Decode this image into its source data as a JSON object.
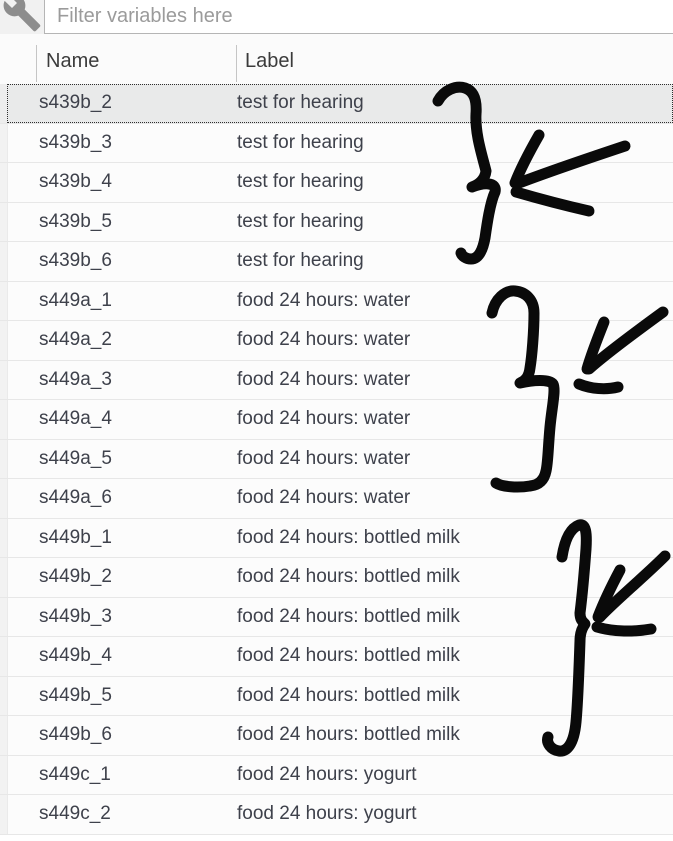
{
  "filter": {
    "placeholder": "Filter variables here",
    "icon": "wrench-icon"
  },
  "columns": {
    "name": "Name",
    "label": "Label"
  },
  "variables": [
    {
      "name": "s439b_2",
      "label": "test for hearing",
      "selected": true
    },
    {
      "name": "s439b_3",
      "label": "test for hearing",
      "selected": false
    },
    {
      "name": "s439b_4",
      "label": "test for hearing",
      "selected": false
    },
    {
      "name": "s439b_5",
      "label": "test for hearing",
      "selected": false
    },
    {
      "name": "s439b_6",
      "label": "test for hearing",
      "selected": false
    },
    {
      "name": "s449a_1",
      "label": "food 24 hours: water",
      "selected": false
    },
    {
      "name": "s449a_2",
      "label": "food 24 hours: water",
      "selected": false
    },
    {
      "name": "s449a_3",
      "label": "food 24 hours: water",
      "selected": false
    },
    {
      "name": "s449a_4",
      "label": "food 24 hours: water",
      "selected": false
    },
    {
      "name": "s449a_5",
      "label": "food 24 hours: water",
      "selected": false
    },
    {
      "name": "s449a_6",
      "label": "food 24 hours: water",
      "selected": false
    },
    {
      "name": "s449b_1",
      "label": "food 24 hours: bottled milk",
      "selected": false
    },
    {
      "name": "s449b_2",
      "label": "food 24 hours: bottled milk",
      "selected": false
    },
    {
      "name": "s449b_3",
      "label": "food 24 hours: bottled milk",
      "selected": false
    },
    {
      "name": "s449b_4",
      "label": "food 24 hours: bottled milk",
      "selected": false
    },
    {
      "name": "s449b_5",
      "label": "food 24 hours: bottled milk",
      "selected": false
    },
    {
      "name": "s449b_6",
      "label": "food 24 hours: bottled milk",
      "selected": false
    },
    {
      "name": "s449c_1",
      "label": "food 24 hours: yogurt",
      "selected": false
    },
    {
      "name": "s449c_2",
      "label": "food 24 hours: yogurt",
      "selected": false
    }
  ],
  "annotations": {
    "ink_color": "#0a0a0a",
    "stroke_width": 11,
    "marks": [
      {
        "name": "brace-hearing-group",
        "description": "hand-drawn curly brace spanning the s439b test-for-hearing rows",
        "paths": [
          "M438 101 C444 90 456 85 465 88 C474 91 477 100 476 114 C475 134 482 155 486 171 C485 180 478 185 472 187 C488 181 497 184 495 192 C490 203 487 224 485 238 C483 249 479 259 471 259 C466 259 462 256 461 253"
        ]
      },
      {
        "name": "arrow-hearing-group",
        "description": "hand-drawn arrow pointing left at the hearing brace",
        "paths": [
          "M625 146 C592 157 548 172 519 183",
          "M539 135 C531 149 520 170 515 183",
          "M516 192 C540 199 567 206 589 211"
        ]
      },
      {
        "name": "brace-water-group",
        "description": "hand-drawn curly brace spanning the s449a water rows",
        "paths": [
          "M492 313 C495 299 505 290 515 291 C526 292 534 300 534 313 C534 331 532 356 530 368 C529 377 525 381 520 383 C533 380 549 379 553 384 C556 390 552 406 550 427 C548 449 548 463 546 471 C544 481 538 485 530 486 C518 488 502 487 496 483"
        ]
      },
      {
        "name": "arrow-water-group",
        "description": "hand-drawn arrow pointing left-down at the water brace",
        "paths": [
          "M663 312 C641 328 608 352 589 369",
          "M604 322 C598 337 591 355 587 369",
          "M579 384 C591 389 606 390 618 387"
        ]
      },
      {
        "name": "brace-milk-group",
        "description": "hand-drawn brace stroke spanning the s449b bottled-milk rows",
        "paths": [
          "M562 557 C565 538 571 528 579 525 C586 523 587 533 586 549 C584 576 581 605 580 613 C580 620 583 622 585 624 C582 628 580 633 580 641 C579 669 578 701 576 722 C574 744 567 752 559 751 C551 750 546 743 548 737"
        ]
      },
      {
        "name": "arrow-milk-group",
        "description": "hand-drawn arrow pointing left at the bottled-milk brace",
        "paths": [
          "M665 556 C645 576 615 601 600 617",
          "M620 570 C612 585 603 604 598 617",
          "M597 627 C614 632 634 632 651 629"
        ]
      }
    ]
  },
  "colors": {
    "selection_bg": "#e9eaea",
    "row_text": "#3e414b",
    "header_text": "#3b3b3b",
    "placeholder_text": "#9b9b9b",
    "row_separator": "#e7e7e7",
    "filterbar_bg": "#f1f1f1",
    "ink": "#0a0a0a"
  }
}
